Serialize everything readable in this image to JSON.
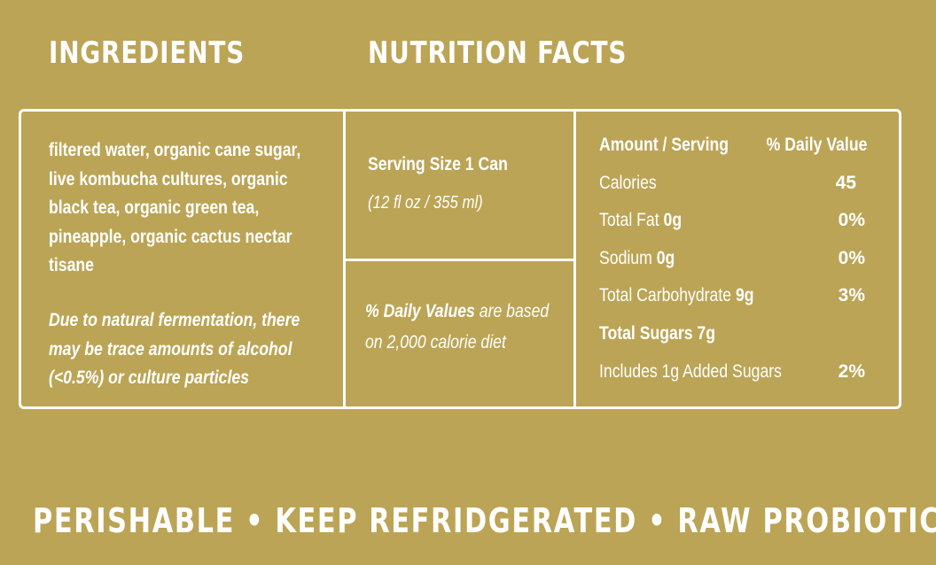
{
  "headings": {
    "ingredients": "INGREDIENTS",
    "nutrition": "NUTRITION FACTS"
  },
  "ingredients": {
    "lines": [
      "filtered water, organic cane sugar,",
      "live kombucha cultures, organic",
      "black tea, organic green tea,",
      "pineapple, organic cactus nectar",
      "tisane"
    ],
    "note_lines": [
      "Due to natural fermentation, there",
      "may be trace amounts of alcohol",
      "(<0.5%) or culture particles"
    ]
  },
  "serving": {
    "size": "Serving Size 1 Can",
    "volume": "(12 fl oz / 355 ml)"
  },
  "daily_value_note": {
    "bold": "% Daily Values",
    "rest": " are based",
    "line2": "on 2,000 calorie diet"
  },
  "nutrition": {
    "header_amount": "Amount / Serving",
    "header_dv": "% Daily Value",
    "calories": {
      "label": "Calories",
      "value": "45"
    },
    "fat": {
      "label": "Total Fat ",
      "amount": "0g",
      "dv": "0%"
    },
    "sodium": {
      "label": "Sodium ",
      "amount": "0g",
      "dv": "0%"
    },
    "carbs": {
      "label": "Total Carbohydrate ",
      "amount": "9g",
      "dv": "3%"
    },
    "sugars": {
      "label": "Total Sugars 7g"
    },
    "added_sugars": {
      "label": "Includes 1g Added Sugars",
      "dv": "2%"
    }
  },
  "footer": "PERISHABLE • KEEP REFRIDGERATED • RAW PROBIOTICS",
  "colors": {
    "background": "#BBA455",
    "text": "#FFFFFF"
  }
}
